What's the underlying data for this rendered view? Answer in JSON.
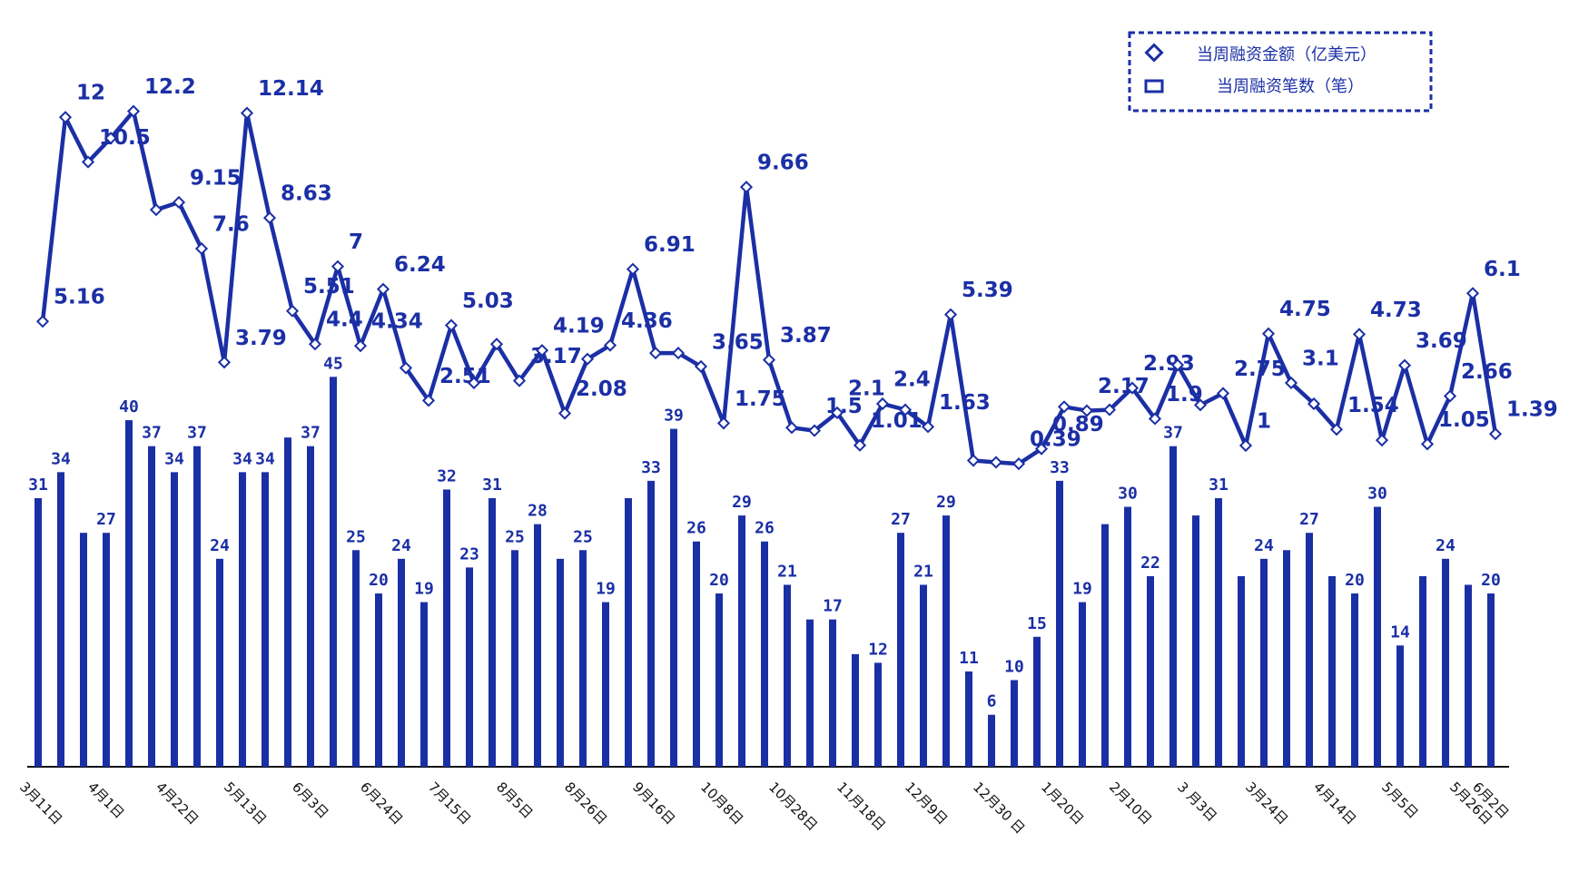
{
  "chart_data": {
    "type": "bar",
    "categories": [
      "3月11日",
      null,
      null,
      "4月1日",
      null,
      null,
      "4月22日",
      null,
      null,
      "5月13日",
      null,
      null,
      "6月3日",
      null,
      null,
      "6月24日",
      null,
      null,
      "7月15日",
      null,
      null,
      "8月5日",
      null,
      null,
      "8月26日",
      null,
      null,
      "9月16日",
      null,
      null,
      "10月8日",
      null,
      null,
      "10月28日",
      null,
      null,
      "11月18日",
      null,
      null,
      "12月9日",
      null,
      null,
      "12月30 日",
      null,
      null,
      "1月20日",
      null,
      null,
      "2月10日",
      null,
      null,
      "3 月3日",
      null,
      null,
      "3月24日",
      null,
      null,
      "4月14日",
      null,
      null,
      "5月5日",
      null,
      null,
      "5月26日",
      "6月2日"
    ],
    "series": [
      {
        "name": "当周融资笔数（笔）",
        "type": "bar",
        "color": "#1b2fa5",
        "values": [
          31,
          34,
          27,
          27,
          40,
          37,
          34,
          37,
          24,
          34,
          34,
          38,
          37,
          45,
          25,
          20,
          24,
          19,
          32,
          23,
          31,
          25,
          28,
          24,
          25,
          19,
          31,
          33,
          39,
          26,
          20,
          29,
          26,
          21,
          17,
          17,
          13,
          12,
          27,
          21,
          29,
          11,
          6,
          10,
          15,
          33,
          19,
          28,
          30,
          22,
          37,
          29,
          31,
          22,
          24,
          25,
          27,
          22,
          20,
          30,
          14,
          22,
          24,
          21,
          20
        ],
        "value_labels": [
          "31",
          "34",
          null,
          "27",
          "40",
          "37",
          "34",
          "37",
          "24",
          "34",
          "34",
          null,
          "37",
          "45",
          "25",
          "20",
          "24",
          "19",
          "32",
          "23",
          "31",
          "25",
          "28",
          null,
          "25",
          "19",
          null,
          "33",
          "39",
          "26",
          "20",
          "29",
          "26",
          "21",
          null,
          "17",
          null,
          "12",
          "27",
          "21",
          "29",
          "11",
          "6",
          "10",
          "15",
          "33",
          "19",
          null,
          "30",
          "22",
          "37",
          null,
          "31",
          null,
          "24",
          null,
          "27",
          null,
          "20",
          "30",
          "14",
          null,
          "24",
          null,
          "20"
        ]
      },
      {
        "name": "当周融资金额（亿美元）",
        "type": "line",
        "axis": "y2",
        "color": "#1b2fa5",
        "values": [
          5.16,
          12,
          10.5,
          11.3,
          12.2,
          8.9,
          9.15,
          7.6,
          3.79,
          12.14,
          8.63,
          5.51,
          4.4,
          7,
          4.34,
          6.24,
          3.6,
          2.51,
          5.03,
          3.1,
          4.4,
          3.17,
          4.19,
          2.08,
          3.9,
          4.36,
          6.91,
          4.1,
          4.1,
          3.65,
          1.75,
          9.66,
          3.87,
          1.6,
          1.5,
          2.1,
          1.01,
          2.4,
          2.2,
          1.63,
          5.39,
          0.5,
          0.44,
          0.39,
          0.89,
          2.3,
          2.17,
          2.2,
          2.93,
          1.9,
          3.7,
          2.36,
          2.75,
          1,
          4.75,
          3.1,
          2.4,
          1.54,
          4.73,
          1.18,
          3.69,
          1.05,
          2.66,
          6.1,
          1.39
        ],
        "value_labels": [
          "5.16",
          "12",
          "10.5",
          null,
          "12.2",
          null,
          "9.15",
          "7.6",
          "3.79",
          "12.14",
          "8.63",
          "5.51",
          "4.4",
          "7",
          "4.34",
          "6.24",
          null,
          "2.51",
          "5.03",
          null,
          null,
          "3.17",
          "4.19",
          "2.08",
          null,
          "4.36",
          "6.91",
          null,
          null,
          "3.65",
          "1.75",
          "9.66",
          "3.87",
          null,
          "1.5",
          "2.1",
          "1.01",
          "2.4",
          null,
          "1.63",
          "5.39",
          null,
          null,
          "0.39",
          "0.89",
          null,
          "2.17",
          null,
          "2.93",
          "1.9",
          null,
          null,
          "2.75",
          "1",
          "4.75",
          "3.1",
          null,
          "1.54",
          "4.73",
          null,
          "3.69",
          "1.05",
          "2.66",
          "6.1",
          "1.39"
        ]
      }
    ],
    "ylim": [
      0,
      86.4
    ],
    "y2lim": [
      -9.76,
      15.32
    ],
    "legend": "upper right"
  }
}
